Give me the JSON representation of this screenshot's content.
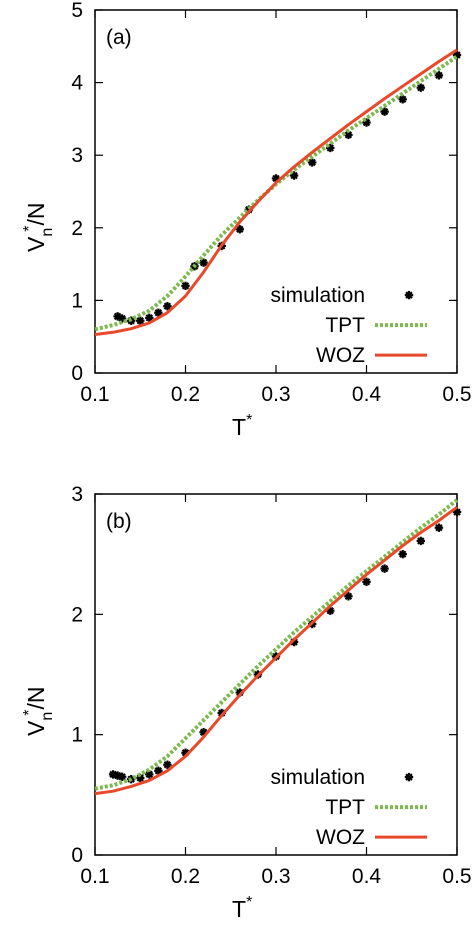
{
  "chart_data": [
    {
      "type": "line",
      "panel_label": "(a)",
      "xlabel_main": "T",
      "xlabel_sup": "*",
      "ylabel_main": "V",
      "ylabel_sub": "n",
      "ylabel_sup": "*",
      "ylabel_tail": "/N",
      "xlim": [
        0.1,
        0.5
      ],
      "ylim": [
        0,
        5
      ],
      "xticks": [
        "0.1",
        "0.2",
        "0.3",
        "0.4",
        "0.5"
      ],
      "yticks": [
        "0",
        "1",
        "2",
        "3",
        "4",
        "5"
      ],
      "legend_position": "bottom-right",
      "series": [
        {
          "name": "simulation",
          "style": "points",
          "color": "#000000",
          "x": [
            0.125,
            0.13,
            0.14,
            0.15,
            0.16,
            0.17,
            0.18,
            0.2,
            0.21,
            0.22,
            0.24,
            0.26,
            0.27,
            0.3,
            0.32,
            0.34,
            0.36,
            0.38,
            0.4,
            0.42,
            0.44,
            0.46,
            0.48,
            0.5
          ],
          "y": [
            0.78,
            0.75,
            0.72,
            0.72,
            0.76,
            0.83,
            0.92,
            1.2,
            1.47,
            1.52,
            1.75,
            1.98,
            2.25,
            2.68,
            2.72,
            2.9,
            3.1,
            3.28,
            3.45,
            3.6,
            3.77,
            3.93,
            4.1,
            4.38
          ]
        },
        {
          "name": "TPT",
          "style": "dotted",
          "color": "#7cba4e",
          "x": [
            0.1,
            0.12,
            0.14,
            0.16,
            0.18,
            0.2,
            0.22,
            0.24,
            0.26,
            0.28,
            0.3,
            0.32,
            0.34,
            0.36,
            0.38,
            0.4,
            0.42,
            0.44,
            0.46,
            0.48,
            0.5
          ],
          "y": [
            0.6,
            0.66,
            0.74,
            0.86,
            1.06,
            1.33,
            1.62,
            1.9,
            2.14,
            2.38,
            2.6,
            2.8,
            2.98,
            3.16,
            3.34,
            3.51,
            3.68,
            3.85,
            4.02,
            4.19,
            4.36
          ]
        },
        {
          "name": "WOZ",
          "style": "solid",
          "color": "#e8492b",
          "x": [
            0.1,
            0.12,
            0.14,
            0.16,
            0.18,
            0.2,
            0.22,
            0.24,
            0.26,
            0.28,
            0.3,
            0.32,
            0.34,
            0.36,
            0.38,
            0.4,
            0.42,
            0.44,
            0.46,
            0.48,
            0.5
          ],
          "y": [
            0.53,
            0.56,
            0.61,
            0.69,
            0.83,
            1.06,
            1.39,
            1.76,
            2.08,
            2.36,
            2.62,
            2.84,
            3.04,
            3.23,
            3.42,
            3.6,
            3.78,
            3.95,
            4.12,
            4.29,
            4.45
          ]
        }
      ]
    },
    {
      "type": "line",
      "panel_label": "(b)",
      "xlabel_main": "T",
      "xlabel_sup": "*",
      "ylabel_main": "V",
      "ylabel_sub": "n",
      "ylabel_sup": "*",
      "ylabel_tail": "/N",
      "xlim": [
        0.1,
        0.5
      ],
      "ylim": [
        0,
        3
      ],
      "xticks": [
        "0.1",
        "0.2",
        "0.3",
        "0.4",
        "0.5"
      ],
      "yticks": [
        "0",
        "1",
        "2",
        "3"
      ],
      "legend_position": "bottom-right",
      "series": [
        {
          "name": "simulation",
          "style": "points",
          "color": "#000000",
          "x": [
            0.12,
            0.125,
            0.13,
            0.14,
            0.15,
            0.16,
            0.17,
            0.18,
            0.2,
            0.22,
            0.24,
            0.26,
            0.28,
            0.3,
            0.32,
            0.34,
            0.36,
            0.38,
            0.4,
            0.42,
            0.44,
            0.46,
            0.48,
            0.5
          ],
          "y": [
            0.67,
            0.66,
            0.65,
            0.63,
            0.64,
            0.67,
            0.7,
            0.75,
            0.85,
            1.02,
            1.18,
            1.35,
            1.5,
            1.65,
            1.77,
            1.92,
            2.03,
            2.15,
            2.27,
            2.38,
            2.5,
            2.61,
            2.72,
            2.85
          ]
        },
        {
          "name": "TPT",
          "style": "dotted",
          "color": "#7cba4e",
          "x": [
            0.1,
            0.12,
            0.14,
            0.16,
            0.18,
            0.2,
            0.22,
            0.24,
            0.26,
            0.28,
            0.3,
            0.32,
            0.34,
            0.36,
            0.38,
            0.4,
            0.42,
            0.44,
            0.46,
            0.48,
            0.5
          ],
          "y": [
            0.55,
            0.58,
            0.63,
            0.71,
            0.82,
            0.97,
            1.12,
            1.27,
            1.42,
            1.57,
            1.71,
            1.85,
            1.98,
            2.11,
            2.24,
            2.36,
            2.48,
            2.6,
            2.72,
            2.83,
            2.95
          ]
        },
        {
          "name": "WOZ",
          "style": "solid",
          "color": "#e8492b",
          "x": [
            0.1,
            0.12,
            0.14,
            0.16,
            0.18,
            0.2,
            0.22,
            0.24,
            0.26,
            0.28,
            0.3,
            0.32,
            0.34,
            0.36,
            0.38,
            0.4,
            0.42,
            0.44,
            0.46,
            0.48,
            0.5
          ],
          "y": [
            0.51,
            0.53,
            0.57,
            0.62,
            0.7,
            0.82,
            0.98,
            1.16,
            1.33,
            1.49,
            1.64,
            1.79,
            1.93,
            2.07,
            2.2,
            2.33,
            2.45,
            2.57,
            2.68,
            2.78,
            2.89
          ]
        }
      ]
    }
  ]
}
